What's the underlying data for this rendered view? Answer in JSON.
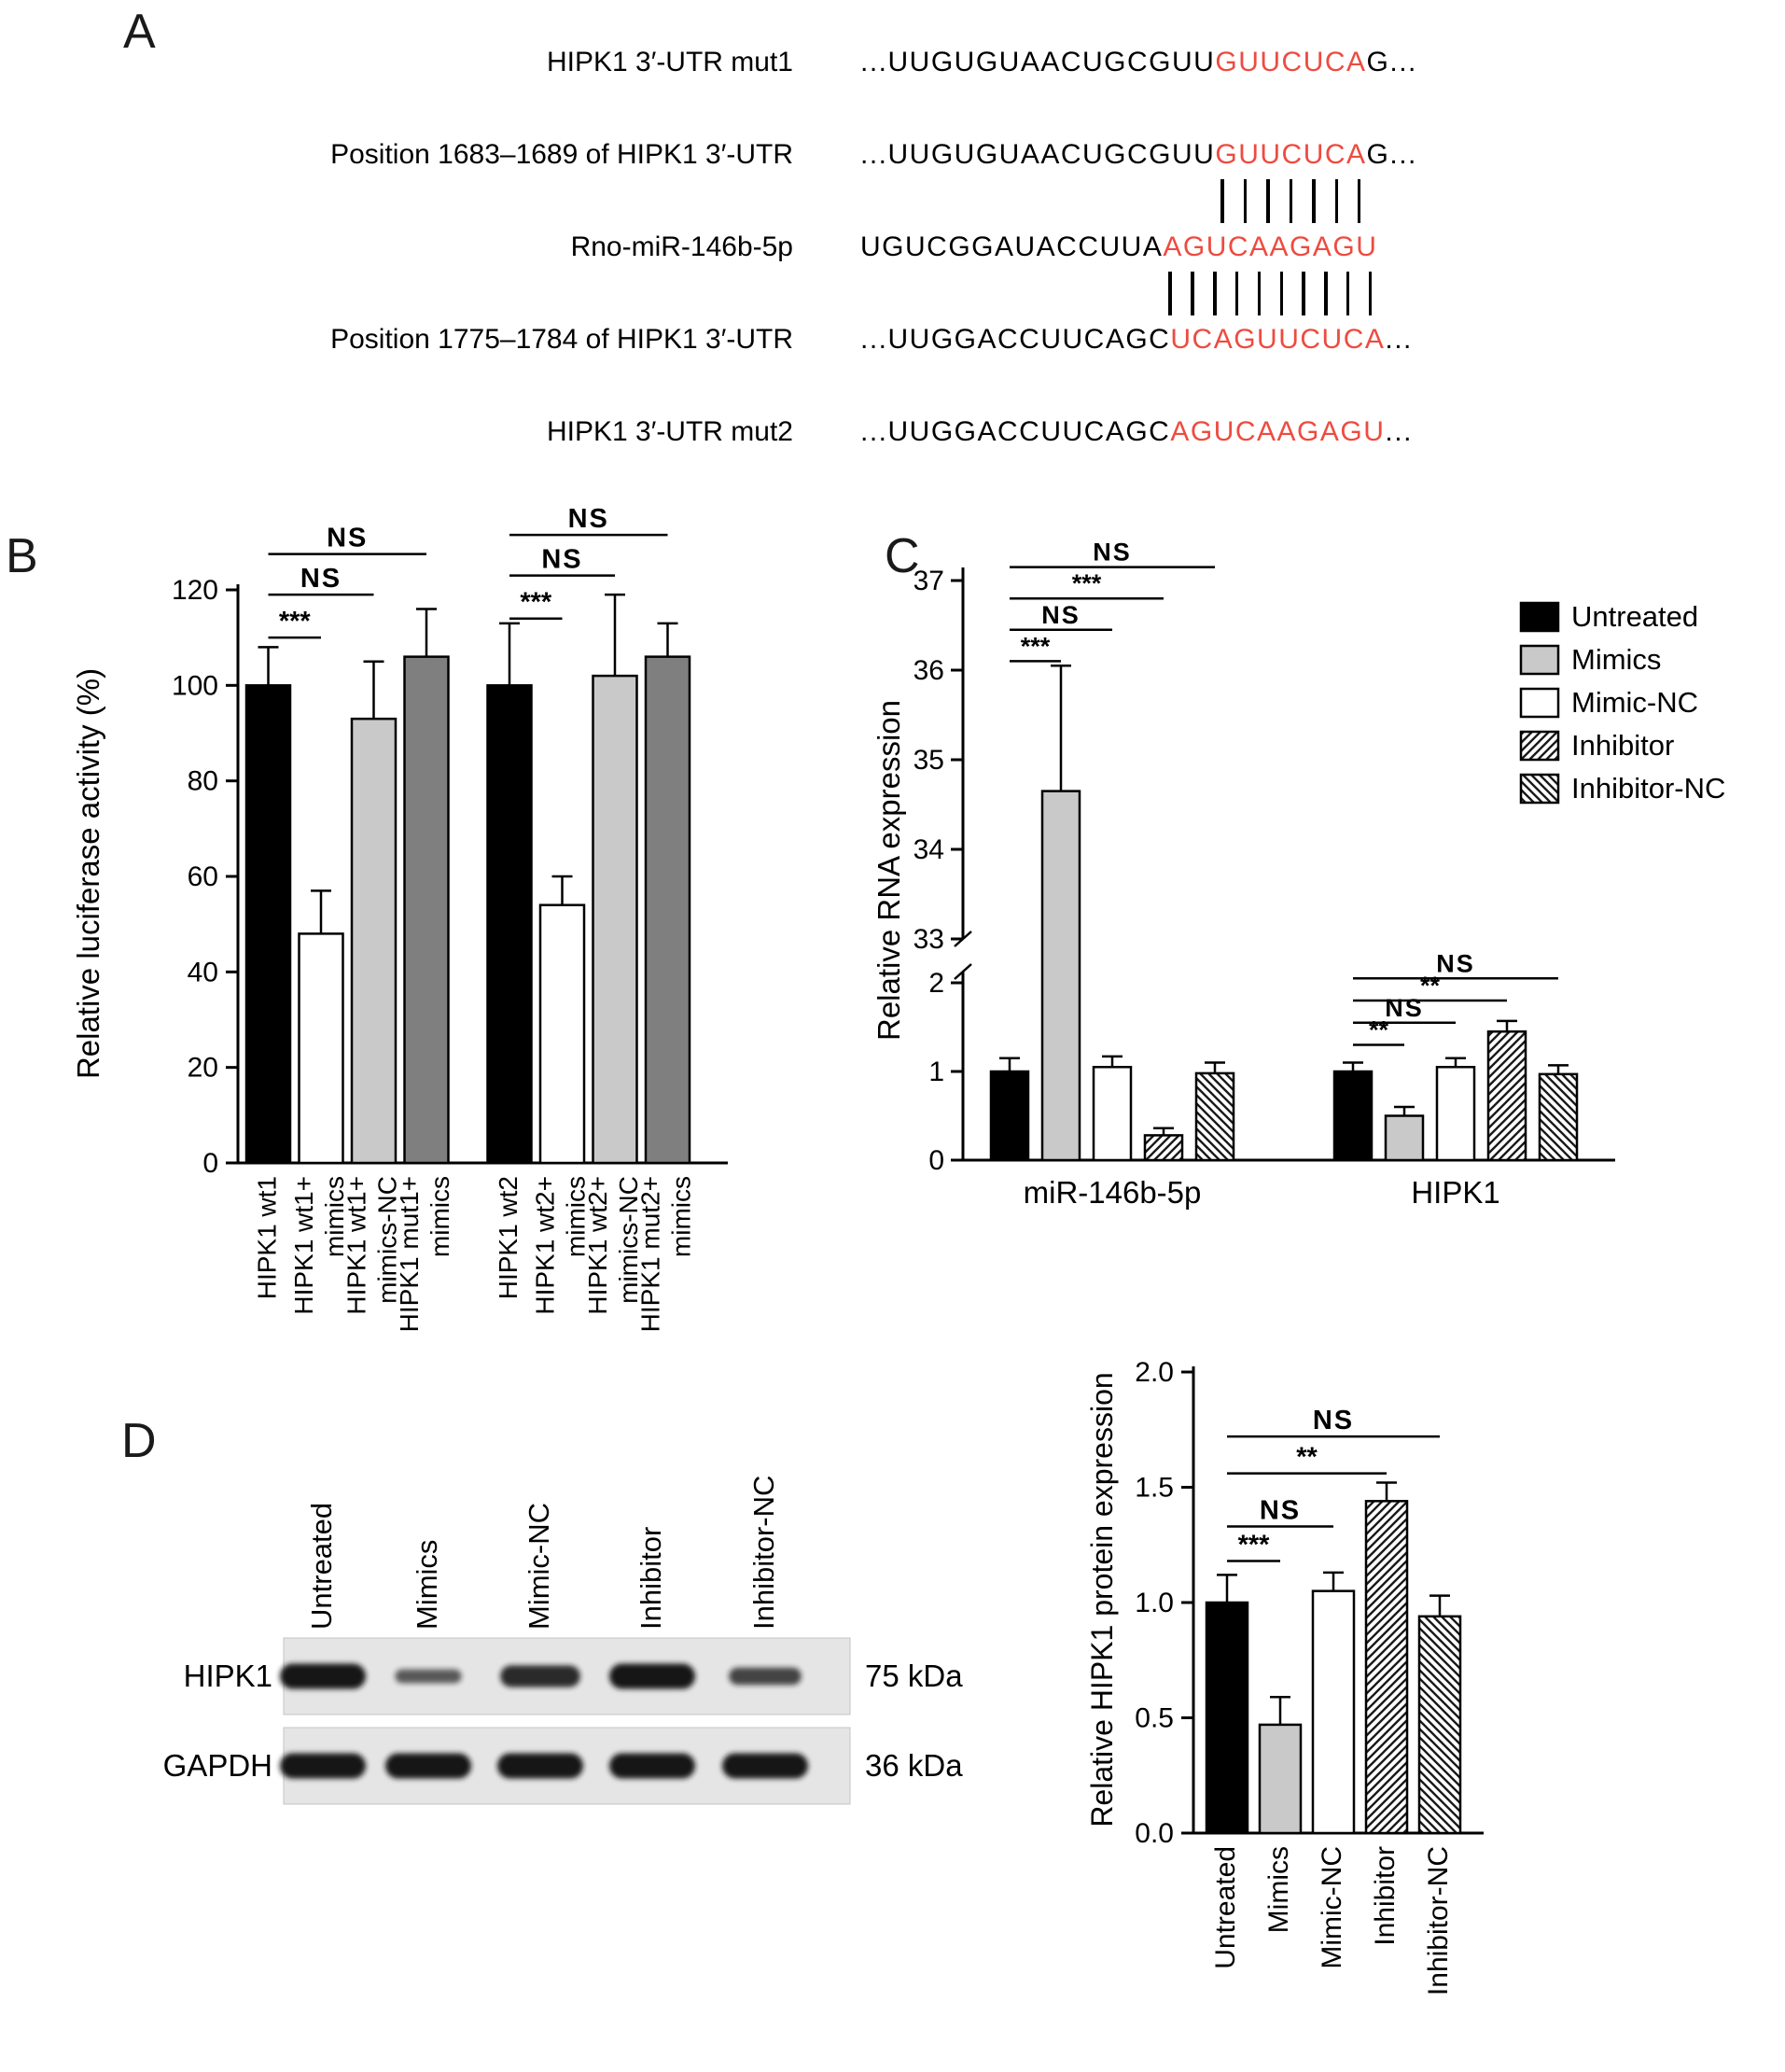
{
  "figure": {
    "background": "#ffffff",
    "red": "#ee4b40",
    "light_gray": "#c9c9c9",
    "dark_gray": "#7f7f7f"
  },
  "panelA": {
    "label": "A",
    "rows": [
      {
        "name": "HIPK1 3′-UTR mut1",
        "black": "...UUGUGUAACUGCGUU",
        "red": "GUUCUCA",
        "tail": "G..."
      },
      {
        "name": "Position 1683–1689 of HIPK1 3′-UTR",
        "black": "...UUGUGUAACUGCGUU",
        "red": "GUUCUCA",
        "tail": "G..."
      },
      {
        "name": "Rno-miR-146b-5p",
        "black": "UGUCGGAUACCUUA",
        "red": "AGUCAAGAGU",
        "tail": ""
      },
      {
        "name": "Position 1775–1784 of HIPK1 3′-UTR",
        "black": "...UUGGACCUUCAGC",
        "red": "UCAGUUCUCA",
        "tail": "..."
      },
      {
        "name": "HIPK1 3′-UTR mut2",
        "black": "...UUGGACCUUCAGC",
        "red": "AGUCAAGAGU",
        "tail": "..."
      }
    ],
    "pairings": [
      {
        "between": [
          1,
          2
        ],
        "bars": 7,
        "anchor_row": 1
      },
      {
        "between": [
          2,
          3
        ],
        "bars": 10,
        "anchor_row": 2
      }
    ]
  },
  "panelB": {
    "label": "B"
  },
  "panelC": {
    "label": "C"
  },
  "panelD": {
    "label": "D",
    "lanes": [
      "Untreated",
      "Mimics",
      "Mimic-NC",
      "Inhibitor",
      "Inhibitor-NC"
    ],
    "blots": [
      {
        "protein": "HIPK1",
        "mw": "75 kDa",
        "bands": [
          1.0,
          0.35,
          0.8,
          1.0,
          0.55
        ]
      },
      {
        "protein": "GAPDH",
        "mw": "36 kDa",
        "bands": [
          1.0,
          1.0,
          1.0,
          1.0,
          1.0
        ]
      }
    ]
  },
  "chart_data": [
    {
      "id": "B",
      "type": "bar",
      "ylabel": "Relative luciferase activity (%)",
      "ylim": [
        0,
        120
      ],
      "yticks": [
        0,
        20,
        40,
        60,
        80,
        100,
        120
      ],
      "categories": [
        "HIPK1 wt1",
        "HIPK1 wt1+|mimics",
        "HIPK1 wt1+|mimics-NC",
        "HIPK1 mut1+|mimics",
        "HIPK1 wt2",
        "HIPK1 wt2+|mimics",
        "HIPK1 wt2+|mimics-NC",
        "HIPK1 mut2+|mimics"
      ],
      "values": [
        100,
        48,
        93,
        106,
        100,
        54,
        102,
        106
      ],
      "errors": [
        8,
        9,
        12,
        10,
        13,
        6,
        17,
        7
      ],
      "styles": [
        "black",
        "white",
        "lightgray",
        "darkgray",
        "black",
        "white",
        "lightgray",
        "darkgray"
      ],
      "significance": [
        {
          "from": 0,
          "to": 1,
          "label": "***",
          "y": 110
        },
        {
          "from": 0,
          "to": 2,
          "label": "NS",
          "y": 119
        },
        {
          "from": 0,
          "to": 3,
          "label": "NS",
          "y": 127.5
        },
        {
          "from": 4,
          "to": 5,
          "label": "***",
          "y": 114
        },
        {
          "from": 4,
          "to": 6,
          "label": "NS",
          "y": 123
        },
        {
          "from": 4,
          "to": 7,
          "label": "NS",
          "y": 131.5
        }
      ]
    },
    {
      "id": "C",
      "type": "bar-broken-axis",
      "ylabel": "Relative RNA expression",
      "axis_upper": {
        "ylim": [
          33,
          37
        ],
        "yticks": [
          33,
          34,
          35,
          36,
          37
        ]
      },
      "axis_lower": {
        "ylim": [
          0,
          2
        ],
        "yticks": [
          0,
          1,
          2
        ]
      },
      "groups": [
        "miR-146b-5p",
        "HIPK1"
      ],
      "series": [
        "Untreated",
        "Mimics",
        "Mimic-NC",
        "Inhibitor",
        "Inhibitor-NC"
      ],
      "styles": [
        "black",
        "lightgray",
        "white",
        "hatch-fwd",
        "hatch-bwd"
      ],
      "values": [
        [
          1.0,
          34.65,
          1.05,
          0.28,
          0.98
        ],
        [
          1.0,
          0.5,
          1.05,
          1.45,
          0.97
        ]
      ],
      "errors": [
        [
          0.15,
          1.4,
          0.12,
          0.08,
          0.12
        ],
        [
          0.1,
          0.1,
          0.1,
          0.12,
          0.1
        ]
      ],
      "significance": [
        {
          "group": 0,
          "from": 0,
          "to": 1,
          "label": "***",
          "y": 36.1,
          "axis": "upper"
        },
        {
          "group": 0,
          "from": 0,
          "to": 2,
          "label": "NS",
          "y": 36.45,
          "axis": "upper"
        },
        {
          "group": 0,
          "from": 0,
          "to": 3,
          "label": "***",
          "y": 36.8,
          "axis": "upper"
        },
        {
          "group": 0,
          "from": 0,
          "to": 4,
          "label": "NS",
          "y": 37.15,
          "axis": "upper"
        },
        {
          "group": 1,
          "from": 0,
          "to": 1,
          "label": "**",
          "y": 1.3,
          "axis": "lower"
        },
        {
          "group": 1,
          "from": 0,
          "to": 2,
          "label": "NS",
          "y": 1.55,
          "axis": "lower"
        },
        {
          "group": 1,
          "from": 0,
          "to": 3,
          "label": "**",
          "y": 1.8,
          "axis": "lower"
        },
        {
          "group": 1,
          "from": 0,
          "to": 4,
          "label": "NS",
          "y": 2.05,
          "axis": "lower"
        }
      ],
      "legend": [
        "Untreated",
        "Mimics",
        "Mimic-NC",
        "Inhibitor",
        "Inhibitor-NC"
      ]
    },
    {
      "id": "D",
      "type": "bar",
      "ylabel": "Relative HIPK1 protein expression",
      "ylim": [
        0,
        2
      ],
      "yticks": [
        0,
        0.5,
        1,
        1.5,
        2
      ],
      "ytick_labels": [
        "0.0",
        "0.5",
        "1.0",
        "1.5",
        "2.0"
      ],
      "categories": [
        "Untreated",
        "Mimics",
        "Mimic-NC",
        "Inhibitor",
        "Inhibitor-NC"
      ],
      "values": [
        1.0,
        0.47,
        1.05,
        1.44,
        0.94
      ],
      "errors": [
        0.12,
        0.12,
        0.08,
        0.08,
        0.09
      ],
      "styles": [
        "black",
        "lightgray",
        "white",
        "hatch-fwd",
        "hatch-bwd"
      ],
      "significance": [
        {
          "from": 0,
          "to": 1,
          "label": "***",
          "y": 1.18
        },
        {
          "from": 0,
          "to": 2,
          "label": "NS",
          "y": 1.33
        },
        {
          "from": 0,
          "to": 3,
          "label": "**",
          "y": 1.56
        },
        {
          "from": 0,
          "to": 4,
          "label": "NS",
          "y": 1.72
        }
      ]
    }
  ]
}
